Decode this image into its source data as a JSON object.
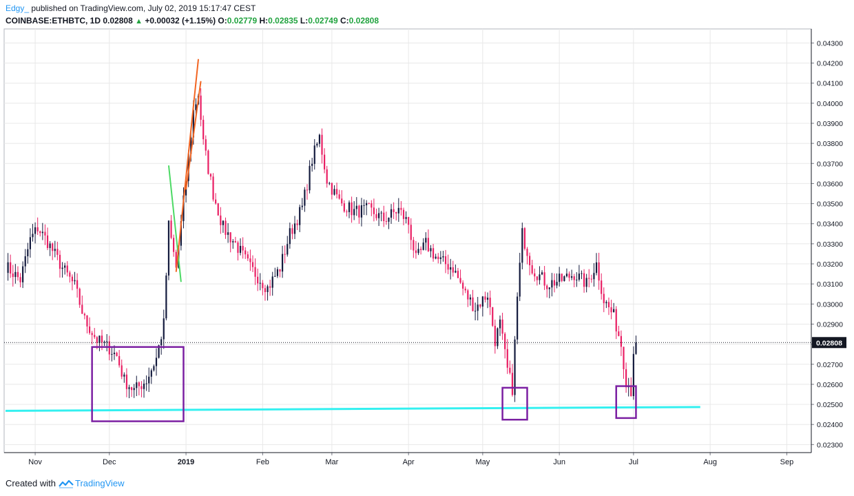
{
  "header": {
    "author": "Edgy_",
    "published_text": " published on TradingView.com, July 02, 2019 15:17:47 CEST",
    "symbol": "COINBASE:ETHBTC, 1D",
    "last": "0.02808",
    "change": "+0.00032 (+1.15%)",
    "o_label": "O:",
    "o_value": "0.02779",
    "h_label": "H:",
    "h_value": "0.02835",
    "l_label": "L:",
    "l_value": "0.02749",
    "c_label": "C:",
    "c_value": "0.02808"
  },
  "footer": {
    "created_with": "Created with",
    "brand": "TradingView"
  },
  "colors": {
    "up": "#131a3d",
    "down": "#e91e63",
    "support": "#33f0f0",
    "box": "#7b1fa2",
    "green_line": "#4cd964",
    "orange_line": "#f26522",
    "grid": "#e8e8e8",
    "price_label_bg": "#131722"
  },
  "chart_data": {
    "type": "candlestick",
    "symbol": "COINBASE:ETHBTC",
    "interval": "1D",
    "ylim": [
      0.0226,
      0.0437
    ],
    "y_ticks": [
      "0.02300",
      "0.02400",
      "0.02500",
      "0.02600",
      "0.02700",
      "0.02800",
      "0.02900",
      "0.03000",
      "0.03100",
      "0.03200",
      "0.03300",
      "0.03400",
      "0.03500",
      "0.03600",
      "0.03700",
      "0.03800",
      "0.03900",
      "0.04000",
      "0.04100",
      "0.04200",
      "0.04300"
    ],
    "x_ticks": [
      "Nov",
      "Dec",
      "2019",
      "Feb",
      "Mar",
      "Apr",
      "May",
      "Jun",
      "Jul",
      "Aug",
      "Sep"
    ],
    "last_price": 0.02808,
    "last_price_label": "0.02808",
    "keypoints": [
      [
        "2018-10-20",
        0.0319
      ],
      [
        "2018-10-26",
        0.0312
      ],
      [
        "2018-10-30",
        0.0332
      ],
      [
        "2018-11-02",
        0.0338
      ],
      [
        "2018-11-06",
        0.0331
      ],
      [
        "2018-11-12",
        0.0318
      ],
      [
        "2018-11-17",
        0.0309
      ],
      [
        "2018-11-21",
        0.0292
      ],
      [
        "2018-11-26",
        0.0282
      ],
      [
        "2018-12-01",
        0.0278
      ],
      [
        "2018-12-04",
        0.0274
      ],
      [
        "2018-12-07",
        0.0262
      ],
      [
        "2018-12-11",
        0.0257
      ],
      [
        "2018-12-16",
        0.0262
      ],
      [
        "2018-12-20",
        0.0273
      ],
      [
        "2018-12-23",
        0.029
      ],
      [
        "2018-12-25",
        0.0339
      ],
      [
        "2018-12-28",
        0.0318
      ],
      [
        "2019-01-01",
        0.0362
      ],
      [
        "2019-01-04",
        0.0396
      ],
      [
        "2019-01-06",
        0.0405
      ],
      [
        "2019-01-08",
        0.038
      ],
      [
        "2019-01-12",
        0.0355
      ],
      [
        "2019-01-16",
        0.0338
      ],
      [
        "2019-01-21",
        0.033
      ],
      [
        "2019-01-27",
        0.0318
      ],
      [
        "2019-02-03",
        0.0308
      ],
      [
        "2019-02-08",
        0.0318
      ],
      [
        "2019-02-12",
        0.0335
      ],
      [
        "2019-02-17",
        0.0348
      ],
      [
        "2019-02-21",
        0.0372
      ],
      [
        "2019-02-24",
        0.0383
      ],
      [
        "2019-02-27",
        0.0362
      ],
      [
        "2019-03-04",
        0.0351
      ],
      [
        "2019-03-10",
        0.0346
      ],
      [
        "2019-03-16",
        0.0347
      ],
      [
        "2019-03-22",
        0.0342
      ],
      [
        "2019-03-28",
        0.0347
      ],
      [
        "2019-04-01",
        0.034
      ],
      [
        "2019-04-04",
        0.0322
      ],
      [
        "2019-04-08",
        0.033
      ],
      [
        "2019-04-13",
        0.0322
      ],
      [
        "2019-04-19",
        0.0318
      ],
      [
        "2019-04-24",
        0.0305
      ],
      [
        "2019-04-28",
        0.0298
      ],
      [
        "2019-05-03",
        0.0305
      ],
      [
        "2019-05-06",
        0.0282
      ],
      [
        "2019-05-08",
        0.029
      ],
      [
        "2019-05-11",
        0.0267
      ],
      [
        "2019-05-13",
        0.0258
      ],
      [
        "2019-05-15",
        0.0303
      ],
      [
        "2019-05-17",
        0.0335
      ],
      [
        "2019-05-21",
        0.0318
      ],
      [
        "2019-05-27",
        0.031
      ],
      [
        "2019-06-02",
        0.0312
      ],
      [
        "2019-06-07",
        0.0315
      ],
      [
        "2019-06-12",
        0.031
      ],
      [
        "2019-06-16",
        0.032
      ],
      [
        "2019-06-19",
        0.0302
      ],
      [
        "2019-06-23",
        0.0294
      ],
      [
        "2019-06-26",
        0.028
      ],
      [
        "2019-06-28",
        0.0262
      ],
      [
        "2019-06-30",
        0.0257
      ],
      [
        "2019-07-01",
        0.0277
      ],
      [
        "2019-07-02",
        0.02808
      ]
    ],
    "annotations": {
      "support_line": [
        [
          "2018-10-20",
          0.02468
        ],
        [
          "2019-07-28",
          0.02487
        ]
      ],
      "green_line": [
        [
          "2018-12-25",
          0.0369
        ],
        [
          "2018-12-30",
          0.0311
        ]
      ],
      "orange_line": [
        [
          "2018-12-28",
          0.0316
        ],
        [
          "2019-01-06",
          0.0422
        ]
      ],
      "orange_line_2": [
        [
          "2019-01-01",
          0.0357
        ],
        [
          "2019-01-07",
          0.0411
        ]
      ],
      "boxes": [
        {
          "from": "2018-11-24",
          "to": "2018-12-31",
          "top": 0.02786,
          "bottom": 0.02416
        },
        {
          "from": "2019-05-09",
          "to": "2019-05-19",
          "top": 0.02583,
          "bottom": 0.02424
        },
        {
          "from": "2019-06-24",
          "to": "2019-07-02",
          "top": 0.02591,
          "bottom": 0.02432
        }
      ]
    }
  }
}
